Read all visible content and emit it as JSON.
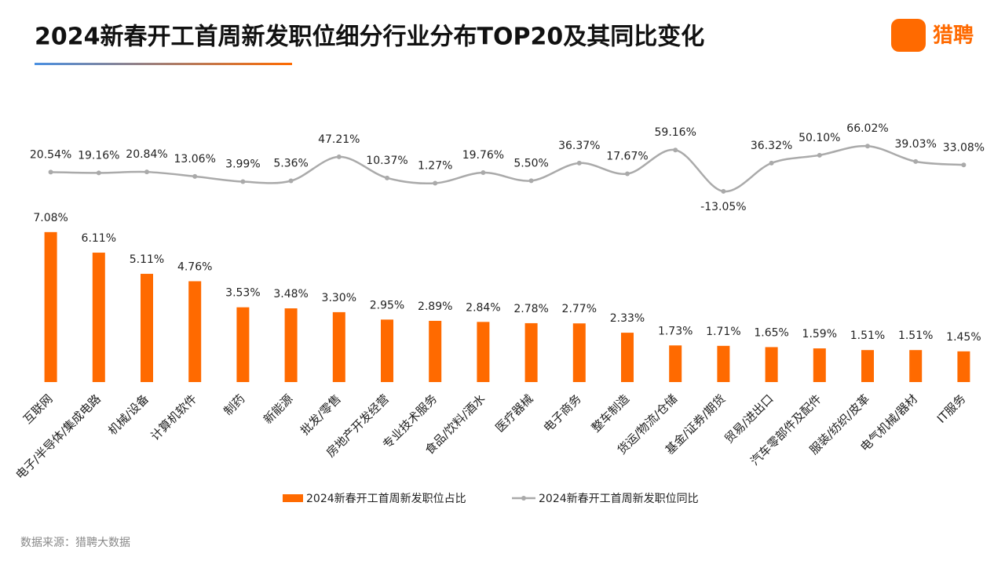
{
  "brand": "猎聘",
  "source": "数据来源：猎聘大数据",
  "chart_data": {
    "type": "bar_line",
    "title": "2024新春开工首周新发职位细分行业分布TOP20及其同比变化",
    "categories": [
      "互联网",
      "电子/半导体/集成电路",
      "机械/设备",
      "计算机软件",
      "制药",
      "新能源",
      "批发/零售",
      "房地产开发经营",
      "专业技术服务",
      "食品/饮料/酒水",
      "医疗器械",
      "电子商务",
      "整车制造",
      "货运/物流/仓储",
      "基金/证券/期货",
      "贸易/进出口",
      "汽车零部件及配件",
      "服装/纺织/皮革",
      "电气机械/器材",
      "IT服务"
    ],
    "series": [
      {
        "name": "2024新春开工首周新发职位占比",
        "color": "#ff6a00",
        "type": "bar",
        "values": [
          7.08,
          6.11,
          5.11,
          4.76,
          3.53,
          3.48,
          3.3,
          2.95,
          2.89,
          2.84,
          2.78,
          2.77,
          2.33,
          1.73,
          1.71,
          1.65,
          1.59,
          1.51,
          1.51,
          1.45
        ],
        "value_labels": [
          "7.08%",
          "6.11%",
          "5.11%",
          "4.76%",
          "3.53%",
          "3.48%",
          "3.30%",
          "2.95%",
          "2.89%",
          "2.84%",
          "2.78%",
          "2.77%",
          "2.33%",
          "1.73%",
          "1.71%",
          "1.65%",
          "1.59%",
          "1.51%",
          "1.51%",
          "1.45%"
        ]
      },
      {
        "name": "2024新春开工首周新发职位同比",
        "color": "#aaaaaa",
        "type": "line",
        "axis": "y2",
        "values": [
          20.54,
          19.16,
          20.84,
          13.06,
          3.99,
          5.36,
          47.21,
          10.37,
          1.27,
          19.76,
          5.5,
          36.37,
          17.67,
          59.16,
          -13.05,
          36.32,
          50.1,
          66.02,
          39.03,
          33.08
        ],
        "value_labels": [
          "20.54%",
          "19.16%",
          "20.84%",
          "13.06%",
          "3.99%",
          "5.36%",
          "47.21%",
          "10.37%",
          "1.27%",
          "19.76%",
          "5.50%",
          "36.37%",
          "17.67%",
          "59.16%",
          "-13.05%",
          "36.32%",
          "50.10%",
          "66.02%",
          "39.03%",
          "33.08%"
        ]
      }
    ],
    "ylim": [
      0,
      8
    ],
    "y2lim": [
      -20,
      80
    ],
    "legend": "bottom"
  }
}
